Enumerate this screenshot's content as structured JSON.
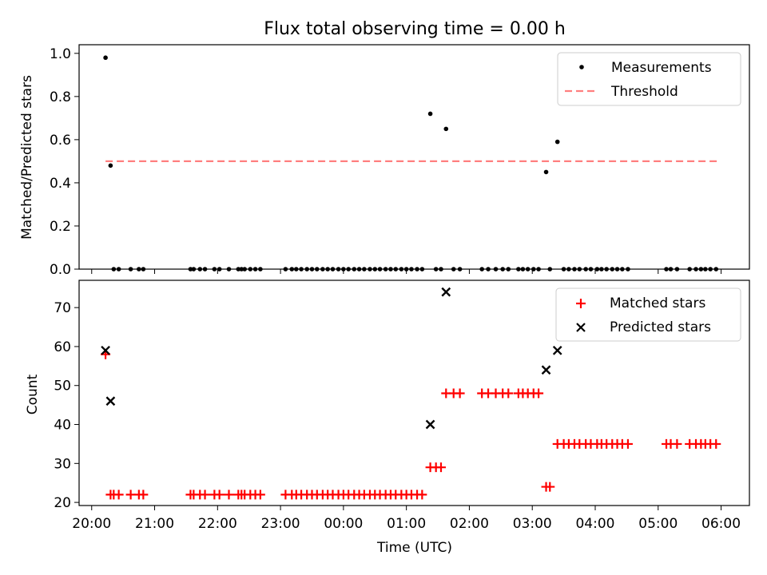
{
  "title": "Flux total observing time = 0.00 h",
  "colors": {
    "red": "#ff0000",
    "black": "#000000",
    "threshold": "#ff7f7f"
  },
  "chart_data": [
    {
      "type": "scatter",
      "ylabel": "Matched/Predicted stars",
      "xlim": [
        19.8,
        6.45
      ],
      "ylim": [
        0,
        1.04
      ],
      "yticks": [
        0.0,
        0.2,
        0.4,
        0.6,
        0.8,
        1.0
      ],
      "ytick_labels": [
        "0.0",
        "0.2",
        "0.4",
        "0.6",
        "0.8",
        "1.0"
      ],
      "legend": {
        "position": "top-right",
        "entries": [
          "Measurements",
          "Threshold"
        ]
      },
      "threshold": {
        "value": 0.5,
        "x_range": [
          20.22,
          5.95
        ],
        "label": "Threshold"
      },
      "measurements": {
        "name": "Measurements",
        "points": [
          [
            20.22,
            0.98
          ],
          [
            20.3,
            0.48
          ],
          [
            1.38,
            0.72
          ],
          [
            1.63,
            0.65
          ],
          [
            3.22,
            0.45
          ],
          [
            3.4,
            0.59
          ]
        ],
        "zeros_x": [
          20.35,
          20.43,
          20.62,
          20.75,
          20.82,
          21.57,
          21.62,
          21.72,
          21.8,
          21.95,
          22.03,
          22.18,
          22.33,
          22.38,
          22.43,
          22.52,
          22.6,
          22.68,
          23.08,
          23.18,
          23.25,
          23.33,
          23.42,
          23.5,
          23.58,
          23.67,
          23.75,
          23.83,
          23.92,
          0.0,
          0.08,
          0.17,
          0.25,
          0.33,
          0.42,
          0.5,
          0.58,
          0.67,
          0.75,
          0.83,
          0.92,
          1.0,
          1.08,
          1.17,
          1.25,
          1.47,
          1.55,
          1.75,
          1.85,
          2.2,
          2.3,
          2.42,
          2.53,
          2.62,
          2.78,
          2.85,
          2.93,
          3.02,
          3.1,
          3.28,
          3.5,
          3.58,
          3.67,
          3.75,
          3.85,
          3.93,
          4.03,
          4.1,
          4.18,
          4.27,
          4.35,
          4.43,
          4.52,
          5.13,
          5.2,
          5.3,
          5.5,
          5.6,
          5.68,
          5.75,
          5.83,
          5.92
        ]
      }
    },
    {
      "type": "scatter",
      "ylabel": "Count",
      "xlabel": "Time (UTC)",
      "xlim": [
        19.8,
        6.45
      ],
      "ylim": [
        19.2,
        77.0
      ],
      "xticks": [
        20,
        21,
        22,
        23,
        0,
        1,
        2,
        3,
        4,
        5,
        6
      ],
      "xtick_labels": [
        "20:00",
        "21:00",
        "22:00",
        "23:00",
        "00:00",
        "01:00",
        "02:00",
        "03:00",
        "04:00",
        "05:00",
        "06:00"
      ],
      "yticks": [
        20,
        30,
        40,
        50,
        60,
        70
      ],
      "ytick_labels": [
        "20",
        "30",
        "40",
        "50",
        "60",
        "70"
      ],
      "legend": {
        "position": "top-right",
        "entries": [
          "Matched stars",
          "Predicted stars"
        ]
      },
      "series": [
        {
          "name": "Matched stars",
          "marker": "plus",
          "points": [
            [
              20.22,
              58
            ],
            [
              20.3,
              22
            ],
            [
              20.35,
              22
            ],
            [
              20.43,
              22
            ],
            [
              20.62,
              22
            ],
            [
              20.75,
              22
            ],
            [
              20.82,
              22
            ],
            [
              21.57,
              22
            ],
            [
              21.62,
              22
            ],
            [
              21.72,
              22
            ],
            [
              21.8,
              22
            ],
            [
              21.95,
              22
            ],
            [
              22.03,
              22
            ],
            [
              22.18,
              22
            ],
            [
              22.33,
              22
            ],
            [
              22.38,
              22
            ],
            [
              22.43,
              22
            ],
            [
              22.52,
              22
            ],
            [
              22.6,
              22
            ],
            [
              22.68,
              22
            ],
            [
              23.08,
              22
            ],
            [
              23.18,
              22
            ],
            [
              23.25,
              22
            ],
            [
              23.33,
              22
            ],
            [
              23.42,
              22
            ],
            [
              23.5,
              22
            ],
            [
              23.58,
              22
            ],
            [
              23.67,
              22
            ],
            [
              23.75,
              22
            ],
            [
              23.83,
              22
            ],
            [
              23.92,
              22
            ],
            [
              0.0,
              22
            ],
            [
              0.08,
              22
            ],
            [
              0.17,
              22
            ],
            [
              0.25,
              22
            ],
            [
              0.33,
              22
            ],
            [
              0.42,
              22
            ],
            [
              0.5,
              22
            ],
            [
              0.58,
              22
            ],
            [
              0.67,
              22
            ],
            [
              0.75,
              22
            ],
            [
              0.83,
              22
            ],
            [
              0.92,
              22
            ],
            [
              1.0,
              22
            ],
            [
              1.08,
              22
            ],
            [
              1.17,
              22
            ],
            [
              1.25,
              22
            ],
            [
              1.38,
              29
            ],
            [
              1.47,
              29
            ],
            [
              1.55,
              29
            ],
            [
              1.63,
              48
            ],
            [
              1.75,
              48
            ],
            [
              1.85,
              48
            ],
            [
              2.2,
              48
            ],
            [
              2.3,
              48
            ],
            [
              2.42,
              48
            ],
            [
              2.53,
              48
            ],
            [
              2.62,
              48
            ],
            [
              2.78,
              48
            ],
            [
              2.85,
              48
            ],
            [
              2.93,
              48
            ],
            [
              3.02,
              48
            ],
            [
              3.1,
              48
            ],
            [
              3.22,
              24
            ],
            [
              3.28,
              24
            ],
            [
              3.4,
              35
            ],
            [
              3.5,
              35
            ],
            [
              3.58,
              35
            ],
            [
              3.67,
              35
            ],
            [
              3.75,
              35
            ],
            [
              3.85,
              35
            ],
            [
              3.93,
              35
            ],
            [
              4.03,
              35
            ],
            [
              4.1,
              35
            ],
            [
              4.18,
              35
            ],
            [
              4.27,
              35
            ],
            [
              4.35,
              35
            ],
            [
              4.43,
              35
            ],
            [
              4.52,
              35
            ],
            [
              5.13,
              35
            ],
            [
              5.2,
              35
            ],
            [
              5.3,
              35
            ],
            [
              5.5,
              35
            ],
            [
              5.6,
              35
            ],
            [
              5.68,
              35
            ],
            [
              5.75,
              35
            ],
            [
              5.83,
              35
            ],
            [
              5.92,
              35
            ]
          ]
        },
        {
          "name": "Predicted stars",
          "marker": "x",
          "points": [
            [
              20.22,
              59
            ],
            [
              20.3,
              46
            ],
            [
              1.38,
              40
            ],
            [
              1.63,
              74
            ],
            [
              3.22,
              54
            ],
            [
              3.4,
              59
            ]
          ]
        }
      ]
    }
  ]
}
